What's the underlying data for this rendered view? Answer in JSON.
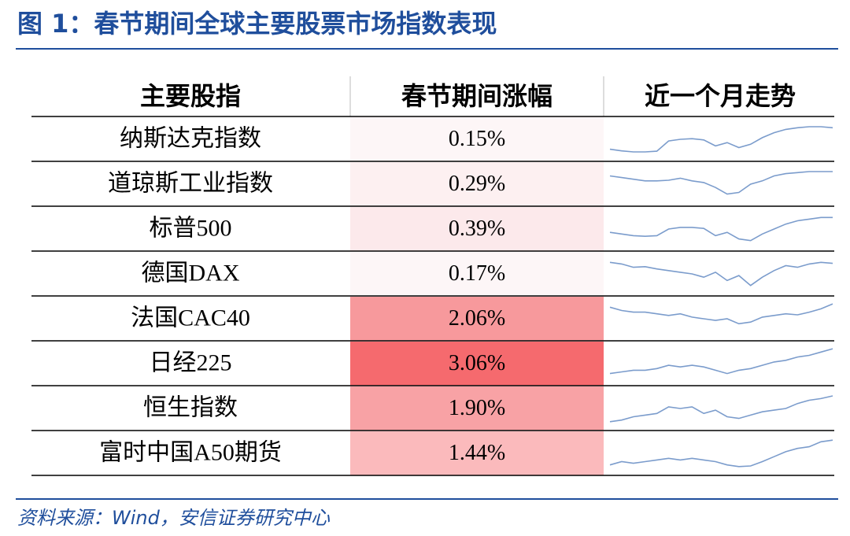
{
  "header": {
    "title": "图 1：春节期间全球主要股票市场指数表现"
  },
  "table": {
    "columns": [
      "主要股指",
      "春节期间涨幅",
      "近一个月走势"
    ],
    "rows": [
      {
        "name": "纳斯达克指数",
        "change": "0.15%",
        "color": "#fdf6f7",
        "trend": [
          20,
          15,
          12,
          12,
          14,
          45,
          50,
          52,
          48,
          30,
          40,
          25,
          35,
          55,
          70,
          80,
          85,
          88,
          88,
          85
        ]
      },
      {
        "name": "道琼斯工业指数",
        "change": "0.29%",
        "color": "#fdf0f1",
        "trend": [
          75,
          70,
          65,
          60,
          60,
          62,
          68,
          60,
          55,
          40,
          20,
          25,
          50,
          60,
          75,
          82,
          85,
          88,
          88,
          88
        ]
      },
      {
        "name": "标普500",
        "change": "0.39%",
        "color": "#fce9eb",
        "trend": [
          40,
          35,
          30,
          28,
          30,
          50,
          55,
          55,
          52,
          30,
          40,
          20,
          15,
          35,
          50,
          65,
          75,
          80,
          85,
          85
        ]
      },
      {
        "name": "德国DAX",
        "change": "0.17%",
        "color": "#fdf6f7",
        "trend": [
          85,
          80,
          70,
          72,
          65,
          60,
          55,
          50,
          40,
          55,
          30,
          45,
          15,
          40,
          60,
          75,
          70,
          80,
          85,
          82
        ]
      },
      {
        "name": "法国CAC40",
        "change": "2.06%",
        "color": "#f7999c",
        "trend": [
          85,
          75,
          70,
          70,
          65,
          60,
          65,
          55,
          50,
          45,
          50,
          35,
          40,
          55,
          60,
          65,
          62,
          70,
          80,
          95
        ]
      },
      {
        "name": "日经225",
        "change": "3.06%",
        "color": "#f56a6e",
        "trend": [
          20,
          25,
          30,
          30,
          35,
          45,
          40,
          45,
          40,
          30,
          20,
          30,
          35,
          45,
          55,
          60,
          70,
          75,
          85,
          95
        ]
      },
      {
        "name": "恒生指数",
        "change": "1.90%",
        "color": "#f8a2a5",
        "trend": [
          10,
          15,
          25,
          30,
          35,
          55,
          50,
          55,
          35,
          45,
          25,
          20,
          30,
          40,
          45,
          50,
          65,
          75,
          80,
          88
        ]
      },
      {
        "name": "富时中国A50期货",
        "change": "1.44%",
        "color": "#fbbabc",
        "trend": [
          15,
          25,
          20,
          25,
          30,
          35,
          30,
          35,
          30,
          25,
          15,
          10,
          12,
          25,
          40,
          55,
          65,
          70,
          85,
          90
        ]
      }
    ]
  },
  "footer": {
    "source": "资料来源：Wind，安信证券研究中心"
  }
}
